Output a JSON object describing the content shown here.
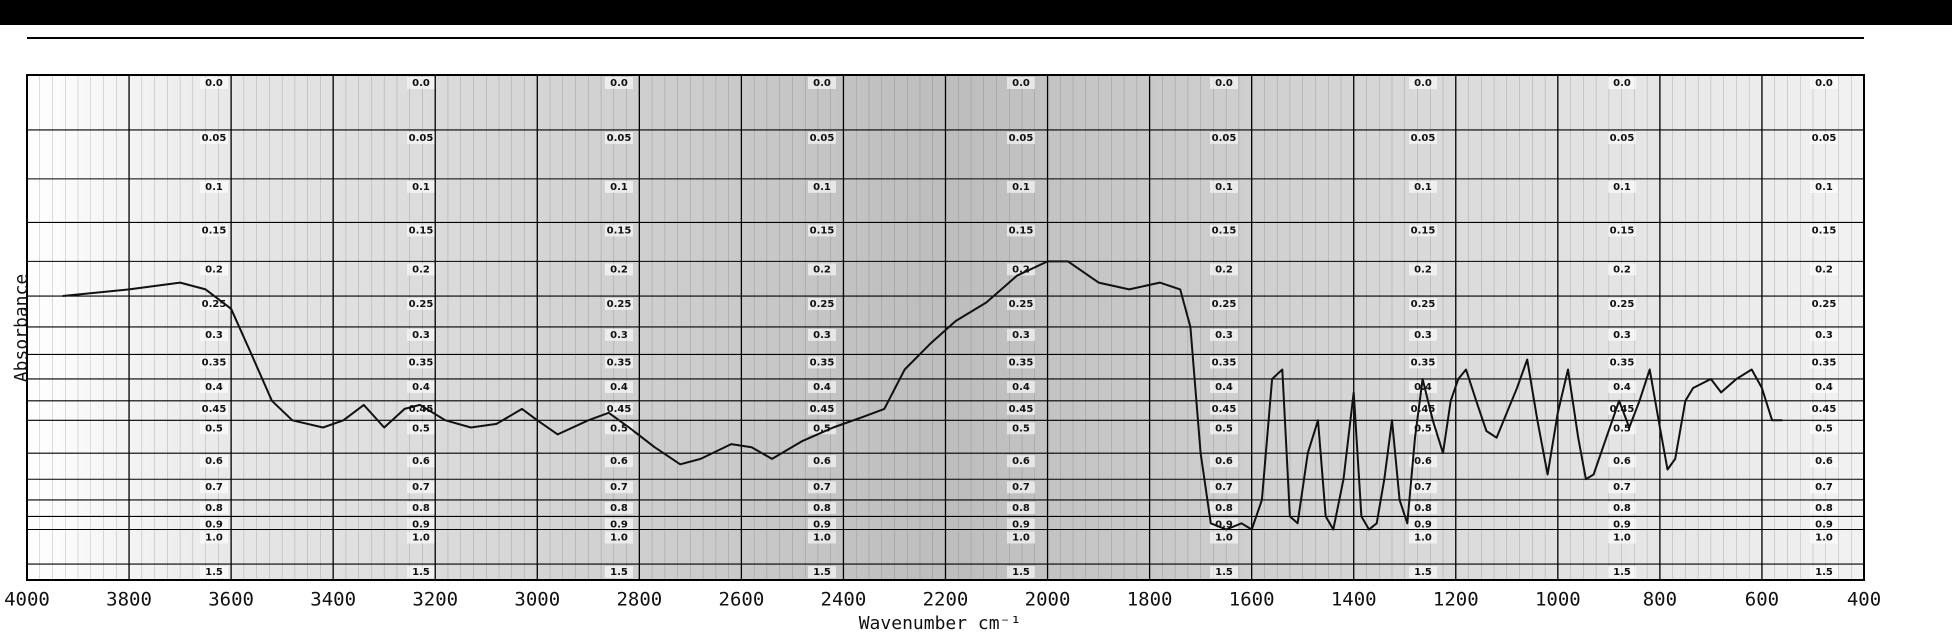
{
  "chart_data": {
    "type": "line",
    "xlabel": "Wavenumber cm⁻¹",
    "ylabel": "Absorbance",
    "xlim": [
      4000,
      400
    ],
    "xticks": [
      4000,
      3800,
      3600,
      3400,
      3200,
      3000,
      2800,
      2600,
      2400,
      2200,
      2000,
      1800,
      1600,
      1400,
      1200,
      1000,
      800,
      600,
      400
    ],
    "ylim": [
      0,
      2
    ],
    "yscale": "transmittance",
    "yticks": [
      {
        "value": 0,
        "label": "0.0"
      },
      0.05,
      0.1,
      0.15,
      0.2,
      0.25,
      0.3,
      0.35,
      0.4,
      0.45,
      0.5,
      0.6,
      0.7,
      0.8,
      0.9,
      {
        "value": 1,
        "label": "1.0"
      },
      1.5
    ],
    "grid": true,
    "x": [
      3930,
      3800,
      3700,
      3650,
      3600,
      3560,
      3520,
      3480,
      3420,
      3380,
      3340,
      3300,
      3260,
      3230,
      3180,
      3130,
      3080,
      3030,
      3000,
      2960,
      2900,
      2860,
      2820,
      2770,
      2720,
      2680,
      2620,
      2580,
      2540,
      2480,
      2420,
      2360,
      2320,
      2280,
      2230,
      2180,
      2120,
      2060,
      2000,
      1960,
      1900,
      1840,
      1780,
      1740,
      1720,
      1700,
      1680,
      1650,
      1620,
      1600,
      1580,
      1560,
      1540,
      1525,
      1510,
      1490,
      1470,
      1455,
      1440,
      1420,
      1400,
      1385,
      1370,
      1355,
      1340,
      1325,
      1310,
      1295,
      1280,
      1265,
      1245,
      1225,
      1210,
      1195,
      1180,
      1160,
      1140,
      1120,
      1100,
      1080,
      1060,
      1040,
      1020,
      1000,
      980,
      960,
      945,
      930,
      905,
      880,
      860,
      840,
      820,
      800,
      785,
      770,
      750,
      735,
      700,
      680,
      650,
      620,
      600,
      580,
      560
    ],
    "series": [
      {
        "color": "#111111",
        "values": [
          0.25,
          0.24,
          0.23,
          0.24,
          0.27,
          0.35,
          0.45,
          0.5,
          0.52,
          0.5,
          0.46,
          0.52,
          0.47,
          0.46,
          0.5,
          0.52,
          0.51,
          0.47,
          0.5,
          0.54,
          0.5,
          0.48,
          0.52,
          0.58,
          0.64,
          0.62,
          0.57,
          0.58,
          0.62,
          0.56,
          0.52,
          0.49,
          0.47,
          0.38,
          0.33,
          0.29,
          0.26,
          0.22,
          0.2,
          0.2,
          0.23,
          0.24,
          0.23,
          0.24,
          0.3,
          0.6,
          0.95,
          1.0,
          0.95,
          1.0,
          0.8,
          0.4,
          0.38,
          0.9,
          0.95,
          0.6,
          0.5,
          0.9,
          1.0,
          0.7,
          0.43,
          0.9,
          1.0,
          0.95,
          0.7,
          0.5,
          0.8,
          0.95,
          0.55,
          0.4,
          0.5,
          0.6,
          0.45,
          0.4,
          0.38,
          0.45,
          0.53,
          0.55,
          0.48,
          0.42,
          0.36,
          0.5,
          0.68,
          0.48,
          0.38,
          0.55,
          0.7,
          0.68,
          0.55,
          0.45,
          0.52,
          0.45,
          0.38,
          0.52,
          0.66,
          0.62,
          0.45,
          0.42,
          0.4,
          0.43,
          0.4,
          0.38,
          0.42,
          0.5,
          0.5
        ]
      }
    ]
  }
}
